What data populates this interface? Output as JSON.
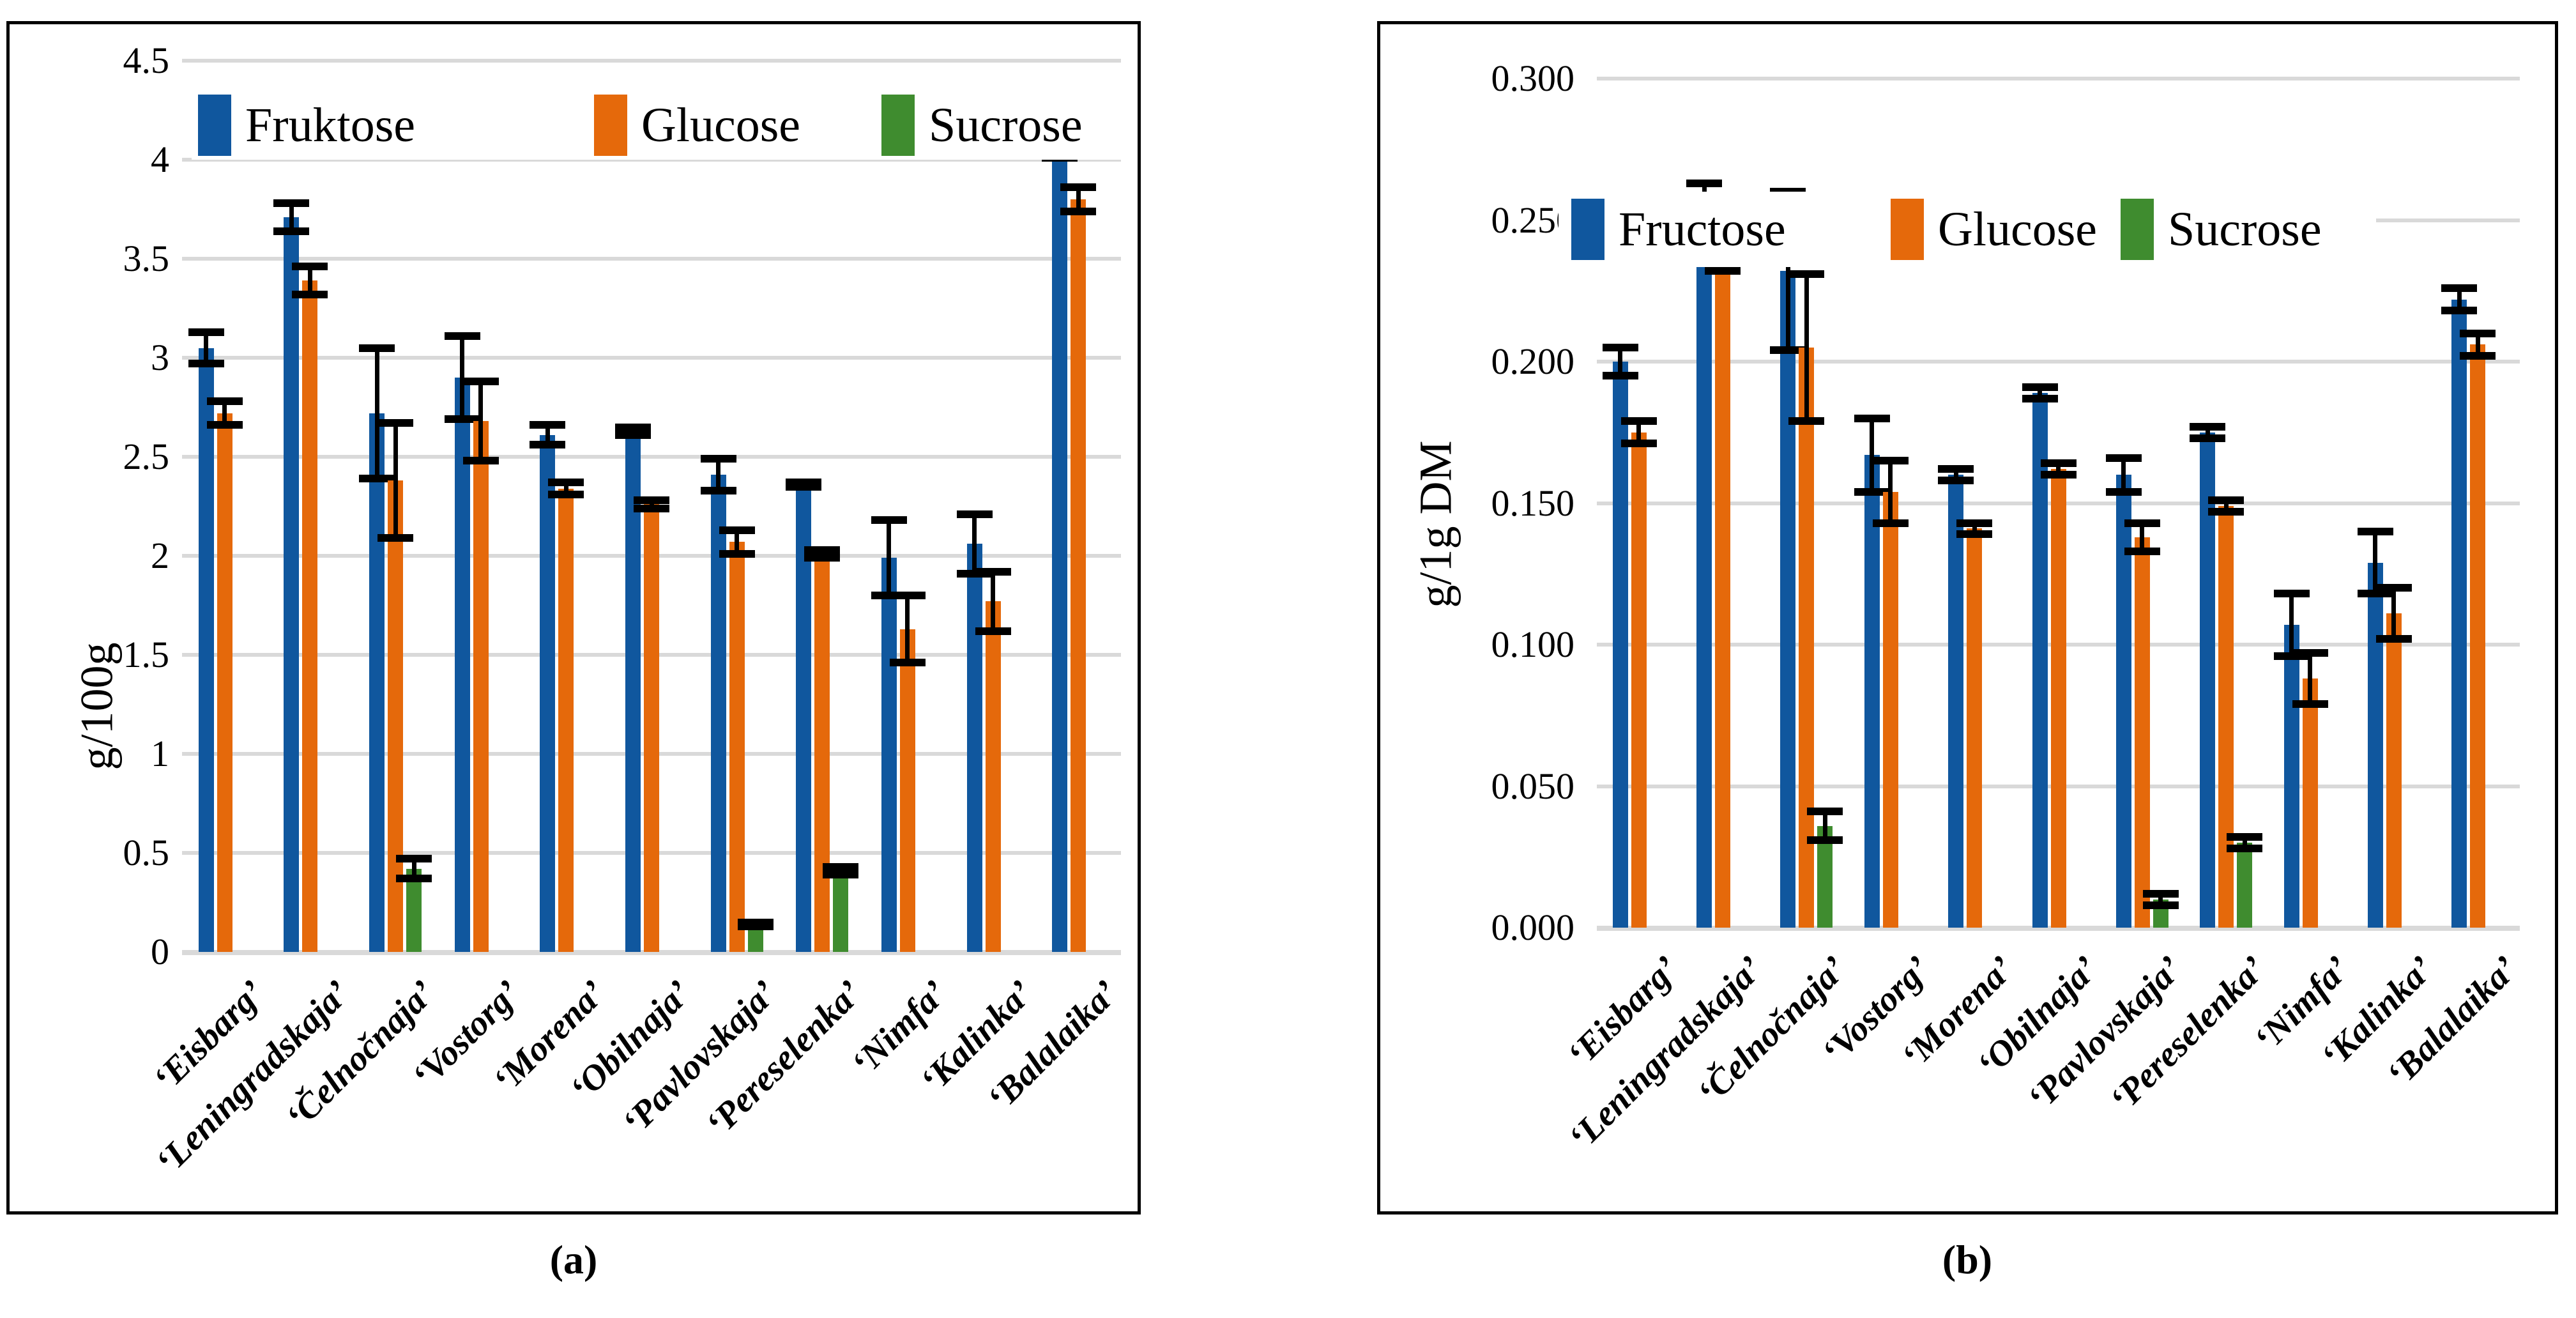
{
  "figure": {
    "description": "Sugar content (fructose, glucose, sucrose) of 11 honeysuckle cultivars, fresh weight basis (a) and dry matter basis (b)"
  },
  "colors": {
    "fructose": "#10579E",
    "glucose": "#E5690B",
    "sucrose": "#3F8C2F",
    "gridline": "#D9D9D9",
    "error_bar": "#000000"
  },
  "chart_data": [
    {
      "id": "a",
      "type": "bar",
      "panel_label": "(a)",
      "ylabel": "g/100g",
      "ylim": [
        0,
        4.5
      ],
      "grid": true,
      "legend_position": "top",
      "yticks": [
        {
          "v": 4.5,
          "label": "4.5"
        },
        {
          "v": 4.0,
          "label": "4"
        },
        {
          "v": 3.5,
          "label": "3.5"
        },
        {
          "v": 3.0,
          "label": "3"
        },
        {
          "v": 2.5,
          "label": "2.5"
        },
        {
          "v": 2.0,
          "label": "2"
        },
        {
          "v": 1.5,
          "label": "1.5"
        },
        {
          "v": 1.0,
          "label": "1"
        },
        {
          "v": 0.5,
          "label": "0.5"
        },
        {
          "v": 0.0,
          "label": "0"
        }
      ],
      "categories": [
        "‘Eisbarg’",
        "‘Leningradskaja’",
        "‘Čelnočnaja’",
        "‘Vostorg’",
        "‘Morena’",
        "‘Obilnaja’",
        "‘Pavlovskaja’",
        "‘Pereselenka’",
        "‘Nimfa’",
        "‘Kalinka’",
        "‘Balalaika’"
      ],
      "series": [
        {
          "name": "Fruktose",
          "color_key": "fructose",
          "values": [
            3.05,
            3.71,
            2.72,
            2.9,
            2.61,
            2.63,
            2.41,
            2.36,
            1.99,
            2.06,
            4.08
          ],
          "errors": [
            0.08,
            0.07,
            0.33,
            0.21,
            0.05,
            0.02,
            0.08,
            0.01,
            0.19,
            0.15,
            0.07
          ]
        },
        {
          "name": "Glucose",
          "color_key": "glucose",
          "values": [
            2.72,
            3.39,
            2.38,
            2.68,
            2.34,
            2.26,
            2.07,
            2.01,
            1.63,
            1.77,
            3.8
          ],
          "errors": [
            0.06,
            0.07,
            0.29,
            0.2,
            0.03,
            0.02,
            0.06,
            0.02,
            0.17,
            0.15,
            0.06
          ]
        },
        {
          "name": "Sucrose",
          "color_key": "sucrose",
          "values": [
            0,
            0,
            0.42,
            0,
            0,
            0,
            0.14,
            0.41,
            0,
            0,
            0
          ],
          "errors": [
            0,
            0,
            0.05,
            0,
            0,
            0,
            0.01,
            0.02,
            0,
            0,
            0
          ]
        }
      ]
    },
    {
      "id": "b",
      "type": "bar",
      "panel_label": "(b)",
      "ylabel": "g/1g DM",
      "ylim": [
        0,
        0.3
      ],
      "grid": true,
      "legend_position": "top",
      "yticks": [
        {
          "v": 0.3,
          "label": "0.300"
        },
        {
          "v": 0.25,
          "label": "0.250"
        },
        {
          "v": 0.2,
          "label": "0.200"
        },
        {
          "v": 0.15,
          "label": "0.150"
        },
        {
          "v": 0.1,
          "label": "0.100"
        },
        {
          "v": 0.05,
          "label": "0.050"
        },
        {
          "v": 0.0,
          "label": "0.000"
        }
      ],
      "categories": [
        "‘Eisbarg’",
        "‘Leningradskaja’",
        "‘Čelnočnaja’",
        "‘Vostorg’",
        "‘Morena’",
        "‘Obilnaja’",
        "‘Pavlovskaja’",
        "‘Pereselenka’",
        "‘Nimfa’",
        "‘Kalinka’",
        "‘Balalaika’"
      ],
      "series": [
        {
          "name": "Fructose",
          "color_key": "fructose",
          "values": [
            0.2,
            0.258,
            0.232,
            0.167,
            0.16,
            0.189,
            0.16,
            0.175,
            0.107,
            0.129,
            0.222
          ],
          "errors": [
            0.005,
            0.005,
            0.028,
            0.013,
            0.002,
            0.002,
            0.006,
            0.002,
            0.011,
            0.011,
            0.004
          ]
        },
        {
          "name": "Glucose",
          "color_key": "glucose",
          "values": [
            0.175,
            0.237,
            0.205,
            0.154,
            0.141,
            0.162,
            0.138,
            0.149,
            0.088,
            0.111,
            0.206
          ],
          "errors": [
            0.004,
            0.005,
            0.026,
            0.011,
            0.002,
            0.002,
            0.005,
            0.002,
            0.009,
            0.009,
            0.004
          ]
        },
        {
          "name": "Sucrose",
          "color_key": "sucrose",
          "values": [
            0,
            0,
            0.036,
            0,
            0,
            0,
            0.01,
            0.03,
            0,
            0,
            0
          ],
          "errors": [
            0,
            0,
            0.005,
            0,
            0,
            0,
            0.002,
            0.002,
            0,
            0,
            0
          ]
        }
      ]
    }
  ]
}
